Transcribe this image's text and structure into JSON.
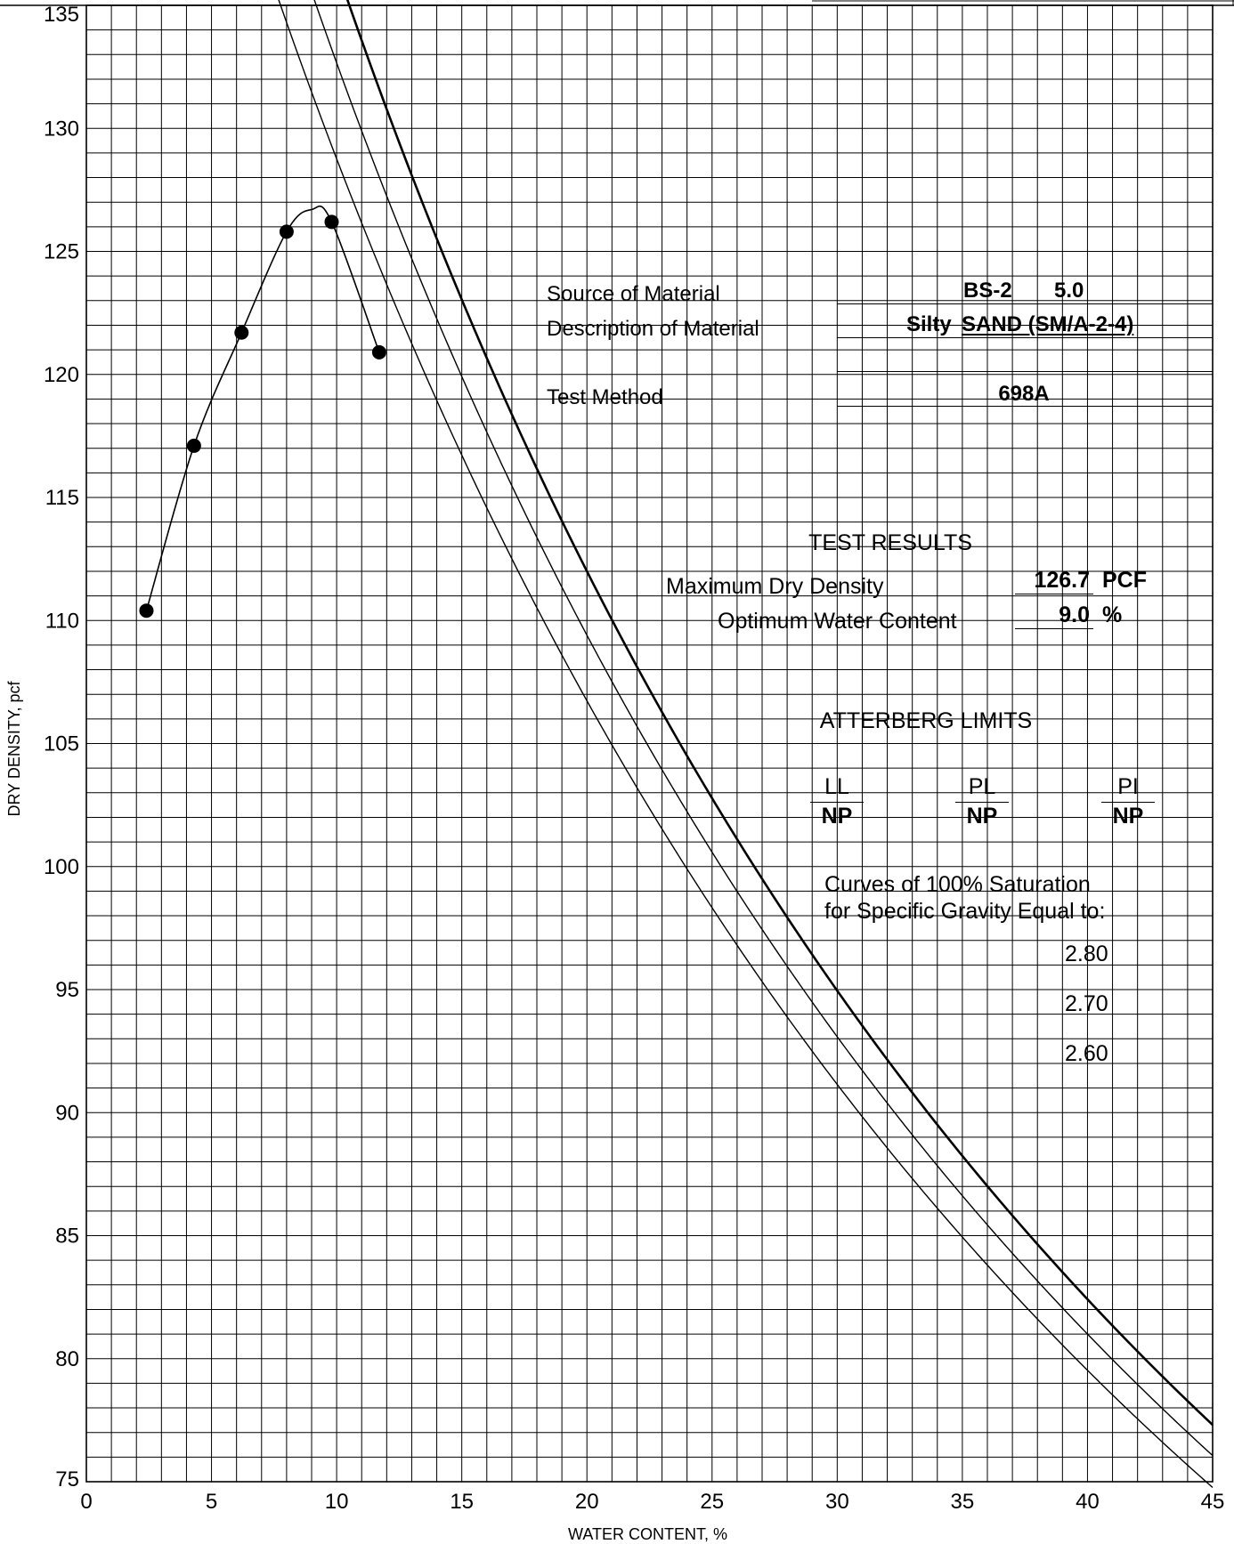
{
  "chart_data": {
    "type": "scatter",
    "xlabel": "WATER CONTENT, %",
    "ylabel": "DRY DENSITY, pcf",
    "xlim": [
      0,
      45
    ],
    "ylim": [
      75,
      135
    ],
    "x_ticks": [
      "0",
      "5",
      "10",
      "15",
      "20",
      "25",
      "30",
      "35",
      "40",
      "45"
    ],
    "y_ticks": [
      "75",
      "80",
      "85",
      "90",
      "95",
      "100",
      "105",
      "110",
      "115",
      "120",
      "125",
      "130",
      "135"
    ],
    "grid": true,
    "series": [
      {
        "x": [
          2.4,
          4.3,
          6.2,
          8.0,
          9.8,
          11.7
        ],
        "y": [
          110.4,
          117.1,
          121.7,
          125.8,
          126.2,
          120.9
        ]
      }
    ],
    "saturation_curves": [
      {
        "specific_gravity": "2.80"
      },
      {
        "specific_gravity": "2.70"
      },
      {
        "specific_gravity": "2.60"
      }
    ]
  },
  "info": {
    "source_label": "Source of Material",
    "source_value_1": "BS-2",
    "source_value_2": "5.0",
    "description_label": "Description of Material",
    "description_value_1": "Silty",
    "description_value_2": "SAND (SM/A-2-4)",
    "method_label": "Test Method",
    "method_value": "698A"
  },
  "results": {
    "heading": "TEST RESULTS",
    "mdd_label": "Maximum Dry Density",
    "mdd_value": "126.7",
    "mdd_unit": "PCF",
    "owc_label": "Optimum Water Content",
    "owc_value": "9.0",
    "owc_unit": "%"
  },
  "atterberg": {
    "heading": "ATTERBERG LIMITS",
    "ll_label": "LL",
    "ll_value": "NP",
    "pl_label": "PL",
    "pl_value": "NP",
    "pi_label": "PI",
    "pi_value": "NP"
  },
  "curves_note": {
    "line1": "Curves of 100% Saturation",
    "line2": "for Specific Gravity Equal to:"
  }
}
